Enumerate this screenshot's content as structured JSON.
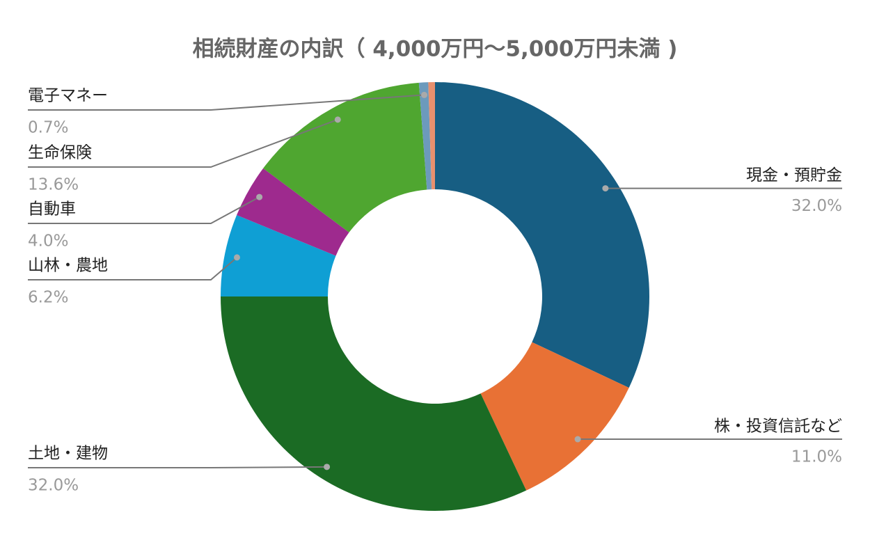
{
  "chart_data": {
    "type": "donut",
    "title": "相続財産の内訳（ 4,000万円～5,000万円未満 )",
    "categories": [
      "現金・預貯金",
      "株・投資信託など",
      "土地・建物",
      "山林・農地",
      "自動車",
      "生命保険",
      "電子マネー",
      null
    ],
    "values": [
      32.0,
      11.0,
      32.0,
      6.2,
      4.0,
      13.6,
      0.7,
      0.5
    ],
    "value_labels": [
      "32.0%",
      "11.0%",
      "32.0%",
      "6.2%",
      "4.0%",
      "13.6%",
      "0.7%",
      null
    ],
    "colors": [
      "#175e83",
      "#e87135",
      "#1b6b24",
      "#0f9fd4",
      "#9e2a8e",
      "#4fa630",
      "#6c9abc",
      "#e8906e"
    ]
  }
}
